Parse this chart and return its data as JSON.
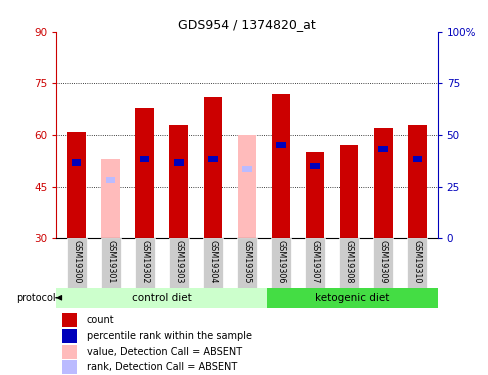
{
  "title": "GDS954 / 1374820_at",
  "samples": [
    "GSM19300",
    "GSM19301",
    "GSM19302",
    "GSM19303",
    "GSM19304",
    "GSM19305",
    "GSM19306",
    "GSM19307",
    "GSM19308",
    "GSM19309",
    "GSM19310"
  ],
  "red_tops": [
    61,
    0,
    68,
    63,
    71,
    0,
    72,
    55,
    57,
    62,
    63
  ],
  "pink_tops": [
    0,
    53,
    0,
    0,
    0,
    60,
    0,
    0,
    0,
    0,
    0
  ],
  "blue_tops": [
    52,
    0,
    53,
    52,
    53,
    0,
    57,
    51,
    0,
    56,
    53
  ],
  "lightblue_tops": [
    0,
    47,
    0,
    0,
    0,
    50,
    0,
    0,
    0,
    0,
    0
  ],
  "ymin": 30,
  "ymax": 90,
  "yticks_left": [
    30,
    45,
    60,
    75,
    90
  ],
  "yticks_right": [
    0,
    25,
    50,
    75,
    100
  ],
  "ctrl_count": 6,
  "keto_count": 5,
  "red_color": "#cc0000",
  "blue_color": "#0000bb",
  "pink_color": "#ffbbbb",
  "lightblue_color": "#bbbbff",
  "control_bg": "#ccffcc",
  "ketogenic_bg": "#44dd44",
  "sample_label_bg": "#cccccc",
  "fig_bg": "#ffffff",
  "bw": 0.55,
  "legend_labels": [
    "count",
    "percentile rank within the sample",
    "value, Detection Call = ABSENT",
    "rank, Detection Call = ABSENT"
  ],
  "legend_colors": [
    "#cc0000",
    "#0000bb",
    "#ffbbbb",
    "#bbbbff"
  ]
}
